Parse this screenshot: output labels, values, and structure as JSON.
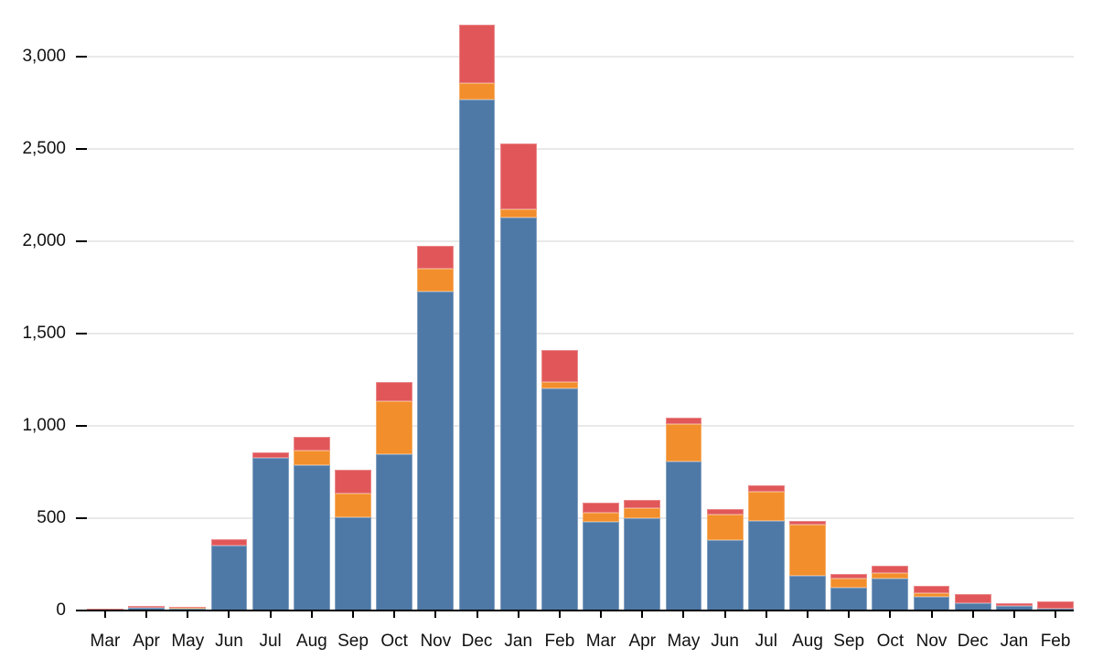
{
  "chart_data": {
    "type": "bar",
    "stacked": true,
    "title": "",
    "xlabel": "",
    "ylabel": "",
    "legend": "none",
    "grid": true,
    "categories": [
      "Mar",
      "Apr",
      "May",
      "Jun",
      "Jul",
      "Aug",
      "Sep",
      "Oct",
      "Nov",
      "Dec",
      "Jan",
      "Feb",
      "Mar",
      "Apr",
      "May",
      "Jun",
      "Jul",
      "Aug",
      "Sep",
      "Oct",
      "Nov",
      "Dec",
      "Jan",
      "Feb"
    ],
    "series": [
      {
        "name": "blue",
        "color": "#4e79a7",
        "values": [
          3,
          15,
          12,
          350,
          825,
          785,
          505,
          845,
          1730,
          2765,
          2130,
          1205,
          480,
          500,
          805,
          380,
          485,
          187,
          125,
          175,
          75,
          40,
          25,
          12
        ]
      },
      {
        "name": "orange",
        "color": "#f28e2b",
        "values": [
          0,
          2,
          3,
          0,
          0,
          80,
          130,
          290,
          120,
          90,
          45,
          35,
          50,
          55,
          205,
          140,
          160,
          277,
          50,
          30,
          20,
          0,
          0,
          0
        ]
      },
      {
        "name": "red",
        "color": "#e15759",
        "values": [
          7,
          8,
          3,
          38,
          33,
          75,
          130,
          105,
          125,
          320,
          355,
          170,
          55,
          45,
          35,
          30,
          33,
          22,
          22,
          36,
          40,
          50,
          16,
          38
        ]
      }
    ],
    "y_axis": {
      "range": [
        0,
        3250
      ],
      "ticks": [
        {
          "label": "0",
          "value": 0
        },
        {
          "label": "500",
          "value": 500
        },
        {
          "label": "1,000",
          "value": 1000
        },
        {
          "label": "1,500",
          "value": 1500
        },
        {
          "label": "2,000",
          "value": 2000
        },
        {
          "label": "2,500",
          "value": 2500
        },
        {
          "label": "3,000",
          "value": 3000
        }
      ]
    },
    "colors": {
      "gridline": "#e9e9e9",
      "axis": "#000000",
      "label_text": "#111111",
      "background": "#ffffff"
    }
  }
}
